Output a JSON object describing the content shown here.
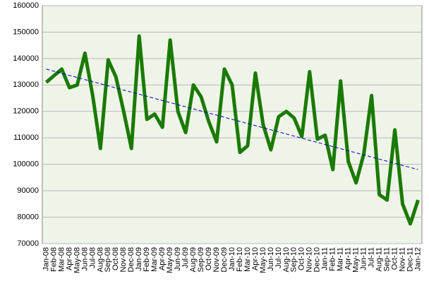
{
  "chart_data": {
    "type": "line",
    "categories": [
      "Jan-08",
      "Feb-08",
      "Mar-08",
      "Apr-08",
      "May-08",
      "Jun-08",
      "Jul-08",
      "Aug-08",
      "Sep-08",
      "Oct-08",
      "Nov-08",
      "Dec-08",
      "Jan-09",
      "Feb-09",
      "Mar-09",
      "Apr-09",
      "May-09",
      "Jun-09",
      "Jul-09",
      "Aug-09",
      "Sep-09",
      "Oct-09",
      "Nov-09",
      "Dec-09",
      "Jan-10",
      "Feb-10",
      "Mar-10",
      "Apr-10",
      "May-10",
      "Jun-10",
      "Jul-10",
      "Aug-10",
      "Sep-10",
      "Oct-10",
      "Nov-10",
      "Dec-10",
      "Jan-11",
      "Feb-11",
      "Mar-11",
      "Apr-11",
      "May-11",
      "Jun-11",
      "Jul-11",
      "Aug-11",
      "Sep-11",
      "Oct-11",
      "Nov-11",
      "Dec-11",
      "Jan-12"
    ],
    "values": [
      131000,
      133500,
      136000,
      129000,
      130000,
      142000,
      126000,
      106000,
      139500,
      133000,
      120000,
      106000,
      148500,
      117000,
      119000,
      114000,
      147000,
      120000,
      112000,
      130000,
      125500,
      116000,
      108500,
      136000,
      130000,
      104500,
      107000,
      134500,
      115000,
      105500,
      118000,
      120000,
      117500,
      110500,
      135000,
      109500,
      111000,
      98000,
      131500,
      101000,
      93000,
      104000,
      126000,
      88500,
      86500,
      113000,
      85000,
      77500,
      86500
    ],
    "color": "#1a7a00",
    "trendline": {
      "color": "#0000cc",
      "values": [
        136000,
        98000
      ]
    },
    "ylim": [
      70000,
      160000
    ],
    "yticks": [
      70000,
      80000,
      90000,
      100000,
      110000,
      120000,
      130000,
      140000,
      150000,
      160000
    ],
    "grid": true
  }
}
